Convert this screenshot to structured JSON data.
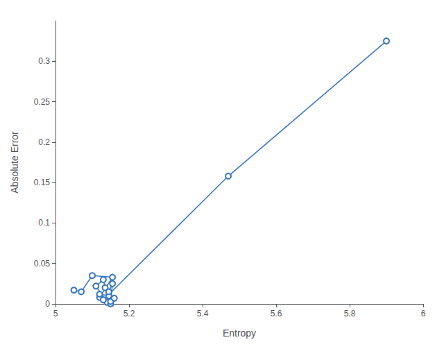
{
  "chart_data": {
    "type": "line",
    "xlabel": "Entropy",
    "ylabel": "Absolute Error",
    "x": [
      5.05,
      5.07,
      5.1,
      5.155,
      5.12,
      5.14,
      5.11,
      5.13,
      5.135,
      5.145,
      5.12,
      5.15,
      5.145,
      5.155,
      5.15,
      5.16,
      5.13,
      5.47,
      5.9
    ],
    "values": [
      0.017,
      0.015,
      0.035,
      0.033,
      0.008,
      0.002,
      0.022,
      0.03,
      0.02,
      0.01,
      0.012,
      0.0,
      0.015,
      0.025,
      0.003,
      0.007,
      0.005,
      0.158,
      0.325
    ],
    "color": "#3575C2",
    "marker": "hollow circle",
    "xlim": [
      5.0,
      6.0
    ],
    "ylim": [
      0,
      0.35
    ],
    "xticks": [
      5.0,
      5.2,
      5.4,
      5.6,
      5.8,
      6.0
    ],
    "yticks": [
      0,
      0.05,
      0.1,
      0.15,
      0.2,
      0.25,
      0.3
    ],
    "grid": false
  }
}
